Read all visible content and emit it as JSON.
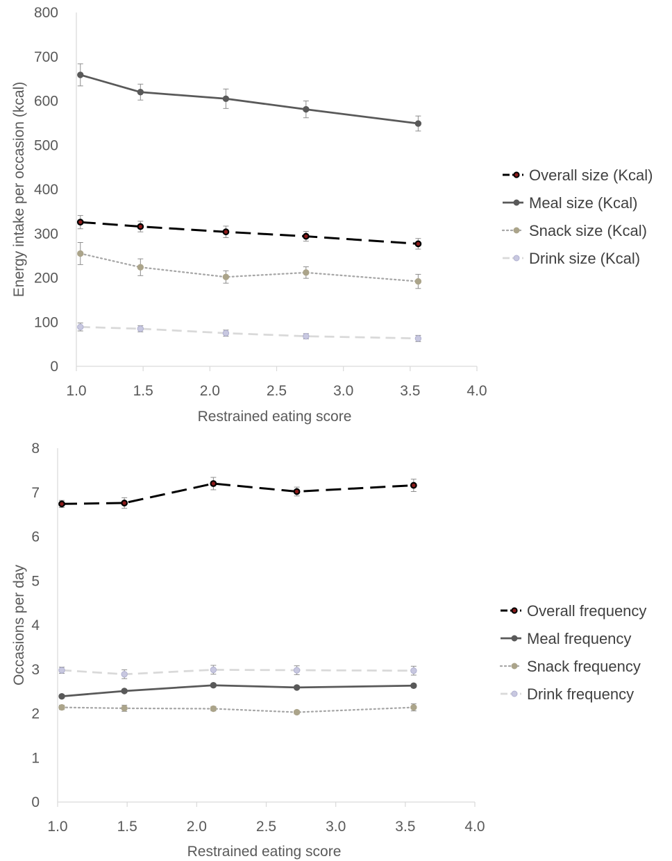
{
  "chart_data": [
    {
      "type": "line",
      "xlabel": "Restrained eating score",
      "ylabel": "Energy intake per occasion (kcal)",
      "xlim": [
        1.0,
        4.0
      ],
      "ylim": [
        0,
        800
      ],
      "xticks": [
        "1.0",
        "1.5",
        "2.0",
        "2.5",
        "3.0",
        "3.5",
        "4.0"
      ],
      "yticks": [
        "0",
        "100",
        "200",
        "300",
        "400",
        "500",
        "600",
        "700",
        "800"
      ],
      "grid": false,
      "legend_position": "right",
      "x": [
        1.03,
        1.48,
        2.12,
        2.72,
        3.56
      ],
      "series": [
        {
          "name": "Overall size (Kcal)",
          "values": [
            326,
            316,
            304,
            294,
            277
          ],
          "errors": [
            15,
            12,
            13,
            11,
            12
          ],
          "color": "#000000",
          "marker": "#000000",
          "style": "dashed"
        },
        {
          "name": "Meal size (Kcal)",
          "values": [
            659,
            620,
            605,
            581,
            549
          ],
          "errors": [
            25,
            18,
            22,
            19,
            17
          ],
          "color": "#595959",
          "marker": "#595959",
          "style": "solid"
        },
        {
          "name": "Snack size (Kcal)",
          "values": [
            255,
            224,
            202,
            212,
            192
          ],
          "errors": [
            25,
            19,
            14,
            13,
            16
          ],
          "color": "#a6a6a6",
          "marker": "#aba48a",
          "style": "dotted"
        },
        {
          "name": "Drink size (Kcal)",
          "values": [
            89,
            85,
            75,
            68,
            63
          ],
          "errors": [
            9,
            7,
            7,
            6,
            7
          ],
          "color": "#d9d9d9",
          "marker": "#c8c8e0",
          "style": "dashed-light"
        }
      ]
    },
    {
      "type": "line",
      "xlabel": "Restrained eating score",
      "ylabel": "Occasions per day",
      "xlim": [
        1.0,
        4.0
      ],
      "ylim": [
        0,
        8
      ],
      "xticks": [
        "1.0",
        "1.5",
        "2.0",
        "2.5",
        "3.0",
        "3.5",
        "4.0"
      ],
      "yticks": [
        "0",
        "1",
        "2",
        "3",
        "4",
        "5",
        "6",
        "7",
        "8"
      ],
      "grid": false,
      "legend_position": "right",
      "x": [
        1.03,
        1.48,
        2.12,
        2.72,
        3.56
      ],
      "series": [
        {
          "name": "Overall frequency",
          "values": [
            6.74,
            6.76,
            7.2,
            7.02,
            7.16
          ],
          "errors": [
            0.08,
            0.12,
            0.14,
            0.1,
            0.14
          ],
          "color": "#000000",
          "marker": "#000000",
          "style": "dashed"
        },
        {
          "name": "Meal frequency",
          "values": [
            2.39,
            2.51,
            2.64,
            2.59,
            2.63
          ],
          "errors": [
            0.04,
            0.04,
            0.04,
            0.04,
            0.04
          ],
          "color": "#595959",
          "marker": "#595959",
          "style": "solid"
        },
        {
          "name": "Snack frequency",
          "values": [
            2.14,
            2.12,
            2.11,
            2.03,
            2.14
          ],
          "errors": [
            0.05,
            0.07,
            0.05,
            0.04,
            0.08
          ],
          "color": "#a6a6a6",
          "marker": "#aba48a",
          "style": "dotted"
        },
        {
          "name": "Drink frequency",
          "values": [
            2.98,
            2.89,
            2.99,
            2.98,
            2.97
          ],
          "errors": [
            0.07,
            0.1,
            0.1,
            0.1,
            0.1
          ],
          "color": "#d9d9d9",
          "marker": "#c8c8e0",
          "style": "dashed-light"
        }
      ]
    }
  ]
}
